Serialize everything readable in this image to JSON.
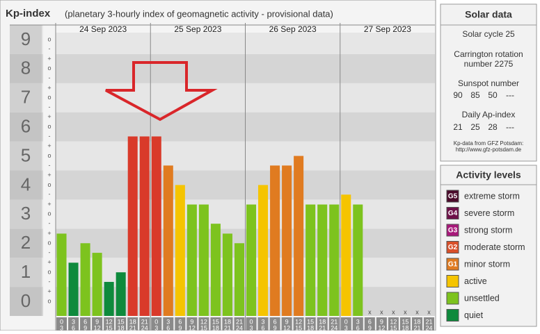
{
  "chart_data": {
    "type": "bar",
    "title": "Kp-index",
    "subtitle": "(planetary 3-hourly index of geomagnetic activity - provisional data)",
    "days": [
      "24 Sep 2023",
      "25 Sep 2023",
      "26 Sep 2023",
      "27 Sep 2023"
    ],
    "hours_start": [
      0,
      3,
      6,
      9,
      12,
      15,
      18,
      21
    ],
    "hours_end": [
      3,
      6,
      9,
      12,
      15,
      18,
      21,
      24
    ],
    "missing_label": "x",
    "values": [
      2.33,
      1.33,
      2,
      1.67,
      0.67,
      1,
      5.67,
      5.67,
      5.67,
      4.67,
      4,
      3.33,
      3.33,
      2.67,
      2.33,
      2,
      3.33,
      4,
      4.67,
      4.67,
      5,
      3.33,
      3.33,
      3.33,
      3.67,
      3.33,
      null,
      null,
      null,
      null,
      null,
      null
    ],
    "colors": [
      "#7dc31e",
      "#0e8a3c",
      "#7dc31e",
      "#7dc31e",
      "#0e8a3c",
      "#0e8a3c",
      "#d93a2a",
      "#d93a2a",
      "#d93a2a",
      "#e07b20",
      "#f5c400",
      "#7dc31e",
      "#7dc31e",
      "#7dc31e",
      "#7dc31e",
      "#7dc31e",
      "#7dc31e",
      "#f5c400",
      "#e07b20",
      "#e07b20",
      "#e07b20",
      "#7dc31e",
      "#7dc31e",
      "#7dc31e",
      "#f5c400",
      "#7dc31e",
      null,
      null,
      null,
      null,
      null,
      null
    ],
    "ylim": [
      -0.5,
      9.5
    ],
    "yticks": [
      0,
      1,
      2,
      3,
      4,
      5,
      6,
      7,
      8,
      9
    ],
    "minor_yticks": [
      {
        "value": 9,
        "label": "o"
      },
      {
        "value": 8.67,
        "label": "-"
      },
      {
        "value": 8.33,
        "label": "+"
      },
      {
        "value": 8,
        "label": "o"
      },
      {
        "value": 7.67,
        "label": "-"
      },
      {
        "value": 7.33,
        "label": "+"
      },
      {
        "value": 7,
        "label": "o"
      },
      {
        "value": 6.67,
        "label": "-"
      },
      {
        "value": 6.33,
        "label": "+"
      },
      {
        "value": 6,
        "label": "o"
      },
      {
        "value": 5.67,
        "label": "-"
      },
      {
        "value": 5.33,
        "label": "+"
      },
      {
        "value": 5,
        "label": "o"
      },
      {
        "value": 4.67,
        "label": "-"
      },
      {
        "value": 4.33,
        "label": "+"
      },
      {
        "value": 4,
        "label": "o"
      },
      {
        "value": 3.67,
        "label": "-"
      },
      {
        "value": 3.33,
        "label": "+"
      },
      {
        "value": 3,
        "label": "o"
      },
      {
        "value": 2.67,
        "label": "-"
      },
      {
        "value": 2.33,
        "label": "+"
      },
      {
        "value": 2,
        "label": "o"
      },
      {
        "value": 1.67,
        "label": "-"
      },
      {
        "value": 1.33,
        "label": "+"
      },
      {
        "value": 1,
        "label": "o"
      },
      {
        "value": 0.67,
        "label": "-"
      },
      {
        "value": 0.33,
        "label": "+"
      },
      {
        "value": 0,
        "label": "o"
      }
    ]
  },
  "solar_panel": {
    "title": "Solar data",
    "cycle": "Solar cycle 25",
    "carrington": [
      "Carrington rotation",
      "number 2275"
    ],
    "sunspot_title": "Sunspot number",
    "sunspot": [
      "90",
      "85",
      "50",
      "---"
    ],
    "ap_title": "Daily Ap-index",
    "ap": [
      "21",
      "25",
      "28",
      "---"
    ],
    "source": [
      "Kp-data from GFZ Potsdam:",
      "http://www.gfz-potsdam.de"
    ]
  },
  "legend": {
    "title": "Activity levels",
    "items": [
      {
        "badge": "G5",
        "label": "extreme storm",
        "color": "#4a0a2a"
      },
      {
        "badge": "G4",
        "label": "severe storm",
        "color": "#6e1048"
      },
      {
        "badge": "G3",
        "label": "strong storm",
        "color": "#a8187a"
      },
      {
        "badge": "G2",
        "label": "moderate storm",
        "color": "#d9502a"
      },
      {
        "badge": "G1",
        "label": "minor storm",
        "color": "#e07b20"
      },
      {
        "label": "active",
        "color": "#f5c400"
      },
      {
        "label": "unsettled",
        "color": "#7dc31e"
      },
      {
        "label": "quiet",
        "color": "#0e8a3c"
      }
    ]
  }
}
